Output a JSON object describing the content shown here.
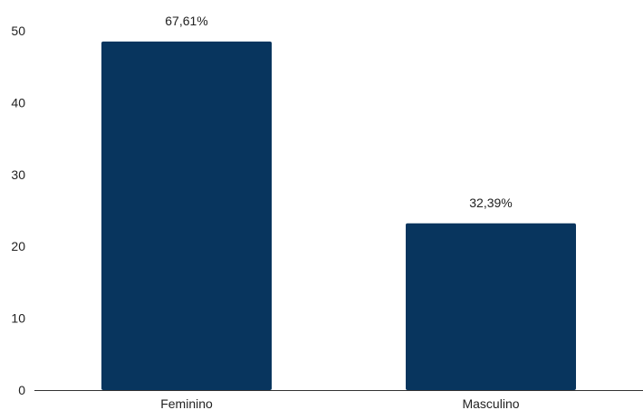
{
  "chart_data": {
    "type": "bar",
    "categories": [
      "Feminino",
      "Masculino"
    ],
    "values": [
      48.5,
      23.2
    ],
    "data_labels": [
      "67,61%",
      "32,39%"
    ],
    "y_ticks": [
      "0",
      "10",
      "20",
      "30",
      "40",
      "50"
    ],
    "ylim": [
      0,
      50
    ],
    "grid": false,
    "legend": "none",
    "bar_color": "#08355e",
    "axis_color": "#333333"
  }
}
